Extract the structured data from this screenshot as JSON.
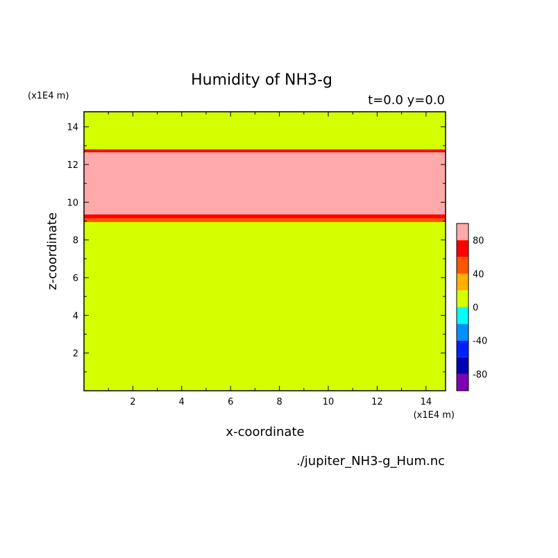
{
  "chart_data": {
    "type": "heatmap",
    "title": "Humidity of NH3-g",
    "subtitle": "t=0.0 y=0.0",
    "xlabel": "x-coordinate",
    "ylabel": "z-coordinate",
    "x_unit": "(x1E4 m)",
    "y_unit": "(x1E4 m)",
    "xlim": [
      0,
      14.8
    ],
    "ylim": [
      0,
      14.8
    ],
    "xticks": [
      2,
      4,
      6,
      8,
      10,
      12,
      14
    ],
    "yticks": [
      2,
      4,
      6,
      8,
      10,
      12,
      14
    ],
    "background_level_value": 10,
    "bands": [
      {
        "z_from": 8.95,
        "z_to": 9.15,
        "value": 50
      },
      {
        "z_from": 9.15,
        "z_to": 9.35,
        "value": 70
      },
      {
        "z_from": 9.35,
        "z_to": 9.5,
        "value": 90
      },
      {
        "z_from": 9.5,
        "z_to": 12.5,
        "value": 100
      },
      {
        "z_from": 12.5,
        "z_to": 12.65,
        "value": 90
      },
      {
        "z_from": 12.65,
        "z_to": 12.8,
        "value": 70
      }
    ],
    "colorbar": {
      "levels": [
        -100,
        -80,
        -60,
        -40,
        -20,
        0,
        20,
        40,
        60,
        80,
        100
      ],
      "colors": [
        "#7f00b3",
        "#0000b3",
        "#0020ff",
        "#0090ff",
        "#00ffff",
        "#d4ff00",
        "#ffb000",
        "#ff5500",
        "#ff0000",
        "#ffaaaa"
      ],
      "labels": [
        "80",
        "40",
        "0",
        "-40",
        "-80"
      ],
      "label_values": [
        80,
        40,
        0,
        -40,
        -80
      ]
    },
    "grid": false,
    "source_file": "./jupiter_NH3-g_Hum.nc"
  }
}
